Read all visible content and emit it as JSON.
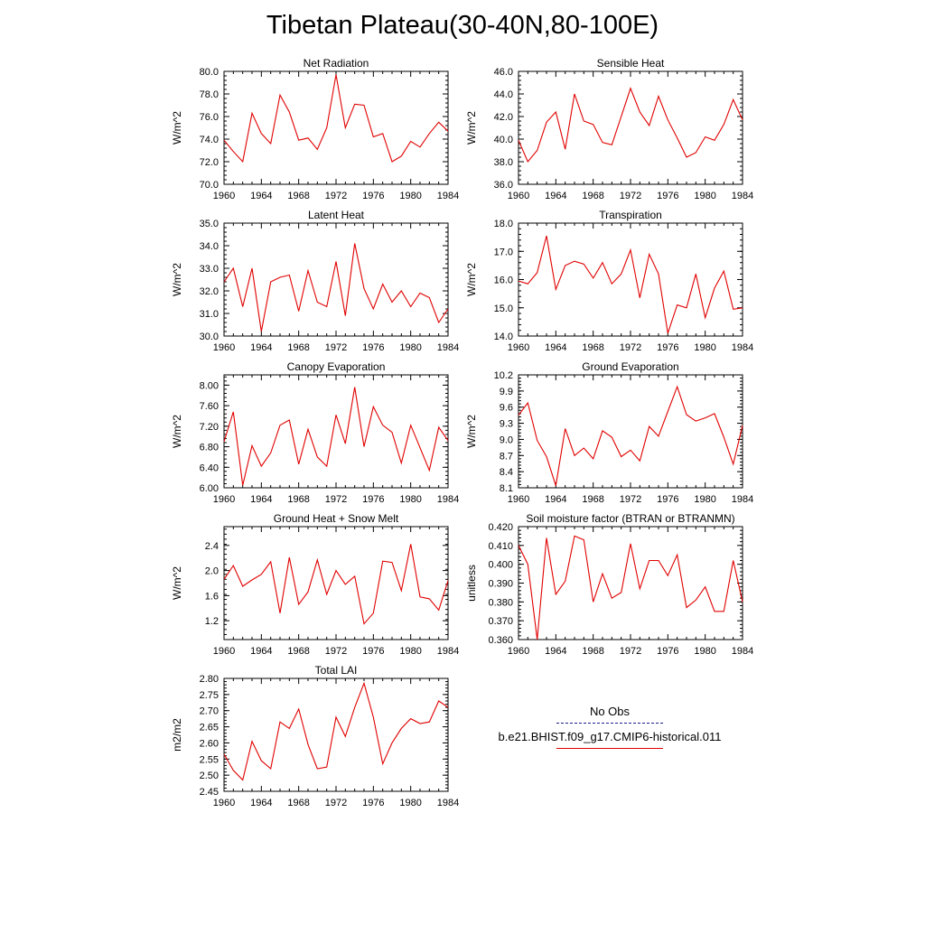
{
  "title": "Tibetan Plateau(30-40N,80-100E)",
  "legend": {
    "obs_label": "No Obs",
    "model_label": "b.e21.BHIST.f09_g17.CMIP6-historical.011",
    "obs_color": "#1a1a8c",
    "model_color": "#e00000"
  },
  "line_color": "#e00000",
  "chart_data": [
    {
      "type": "line",
      "title": "Net Radiation",
      "ylabel": "W/m^2",
      "xlim": [
        1960,
        1984
      ],
      "ylim": [
        70,
        80
      ],
      "yticks": [
        70,
        72,
        74,
        76,
        78,
        80
      ],
      "ytick_decimals": 1,
      "xticks": [
        1960,
        1964,
        1968,
        1972,
        1976,
        1980,
        1984
      ],
      "x": [
        1960,
        1961,
        1962,
        1963,
        1964,
        1965,
        1966,
        1967,
        1968,
        1969,
        1970,
        1971,
        1972,
        1973,
        1974,
        1975,
        1976,
        1977,
        1978,
        1979,
        1980,
        1981,
        1982,
        1983,
        1984
      ],
      "series": [
        {
          "values": [
            73.9,
            72.9,
            72.0,
            76.3,
            74.5,
            73.6,
            77.9,
            76.4,
            73.9,
            74.1,
            73.1,
            75.0,
            79.7,
            75.0,
            77.1,
            77.0,
            74.2,
            74.5,
            72.0,
            72.5,
            73.8,
            73.3,
            74.5,
            75.5,
            74.7
          ]
        }
      ]
    },
    {
      "type": "line",
      "title": "Sensible Heat",
      "ylabel": "W/m^2",
      "xlim": [
        1960,
        1984
      ],
      "ylim": [
        36,
        46
      ],
      "yticks": [
        36,
        38,
        40,
        42,
        44,
        46
      ],
      "ytick_decimals": 1,
      "xticks": [
        1960,
        1964,
        1968,
        1972,
        1976,
        1980,
        1984
      ],
      "x": [
        1960,
        1961,
        1962,
        1963,
        1964,
        1965,
        1966,
        1967,
        1968,
        1969,
        1970,
        1971,
        1972,
        1973,
        1974,
        1975,
        1976,
        1977,
        1978,
        1979,
        1980,
        1981,
        1982,
        1983,
        1984
      ],
      "series": [
        {
          "values": [
            39.9,
            38.0,
            39.0,
            41.5,
            42.4,
            39.1,
            44.0,
            41.6,
            41.3,
            39.7,
            39.5,
            42.0,
            44.5,
            42.4,
            41.2,
            43.8,
            41.7,
            40.1,
            38.4,
            38.8,
            40.2,
            39.9,
            41.3,
            43.5,
            41.7
          ]
        }
      ]
    },
    {
      "type": "line",
      "title": "Latent Heat",
      "ylabel": "W/m^2",
      "xlim": [
        1960,
        1984
      ],
      "ylim": [
        30,
        35
      ],
      "yticks": [
        30,
        31,
        32,
        33,
        34,
        35
      ],
      "ytick_decimals": 1,
      "xticks": [
        1960,
        1964,
        1968,
        1972,
        1976,
        1980,
        1984
      ],
      "x": [
        1960,
        1961,
        1962,
        1963,
        1964,
        1965,
        1966,
        1967,
        1968,
        1969,
        1970,
        1971,
        1972,
        1973,
        1974,
        1975,
        1976,
        1977,
        1978,
        1979,
        1980,
        1981,
        1982,
        1983,
        1984
      ],
      "series": [
        {
          "values": [
            32.4,
            33.0,
            31.3,
            33.0,
            30.2,
            32.4,
            32.6,
            32.7,
            31.1,
            32.9,
            31.5,
            31.3,
            33.3,
            30.9,
            34.1,
            32.1,
            31.2,
            32.3,
            31.5,
            32.0,
            31.3,
            31.9,
            31.7,
            30.6,
            31.2
          ]
        }
      ]
    },
    {
      "type": "line",
      "title": "Transpiration",
      "ylabel": "W/m^2",
      "xlim": [
        1960,
        1984
      ],
      "ylim": [
        14,
        18
      ],
      "yticks": [
        14,
        15,
        16,
        17,
        18
      ],
      "ytick_decimals": 1,
      "xticks": [
        1960,
        1964,
        1968,
        1972,
        1976,
        1980,
        1984
      ],
      "x": [
        1960,
        1961,
        1962,
        1963,
        1964,
        1965,
        1966,
        1967,
        1968,
        1969,
        1970,
        1971,
        1972,
        1973,
        1974,
        1975,
        1976,
        1977,
        1978,
        1979,
        1980,
        1981,
        1982,
        1983,
        1984
      ],
      "series": [
        {
          "values": [
            15.95,
            15.85,
            16.25,
            17.55,
            15.65,
            16.5,
            16.65,
            16.55,
            16.05,
            16.6,
            15.85,
            16.2,
            17.05,
            15.35,
            16.9,
            16.2,
            14.1,
            15.1,
            15.0,
            16.2,
            14.65,
            15.7,
            16.3,
            14.95,
            15.0
          ]
        }
      ]
    },
    {
      "type": "line",
      "title": "Canopy Evaporation",
      "ylabel": "W/m^2",
      "xlim": [
        1960,
        1984
      ],
      "ylim": [
        6.0,
        8.2
      ],
      "yticks": [
        6.0,
        6.4,
        6.8,
        7.2,
        7.6,
        8.0
      ],
      "ytick_decimals": 2,
      "xticks": [
        1960,
        1964,
        1968,
        1972,
        1976,
        1980,
        1984
      ],
      "x": [
        1960,
        1961,
        1962,
        1963,
        1964,
        1965,
        1966,
        1967,
        1968,
        1969,
        1970,
        1971,
        1972,
        1973,
        1974,
        1975,
        1976,
        1977,
        1978,
        1979,
        1980,
        1981,
        1982,
        1983,
        1984
      ],
      "series": [
        {
          "values": [
            6.9,
            7.48,
            6.05,
            6.82,
            6.42,
            6.68,
            7.22,
            7.32,
            6.46,
            7.14,
            6.6,
            6.42,
            7.42,
            6.86,
            7.96,
            6.8,
            7.58,
            7.22,
            7.08,
            6.48,
            7.22,
            6.78,
            6.34,
            7.18,
            6.92
          ]
        }
      ]
    },
    {
      "type": "line",
      "title": "Ground Evaporation",
      "ylabel": "W/m^2",
      "xlim": [
        1960,
        1984
      ],
      "ylim": [
        8.1,
        10.2
      ],
      "yticks": [
        8.1,
        8.4,
        8.7,
        9.0,
        9.3,
        9.6,
        9.9,
        10.2
      ],
      "ytick_decimals": 1,
      "xticks": [
        1960,
        1964,
        1968,
        1972,
        1976,
        1980,
        1984
      ],
      "x": [
        1960,
        1961,
        1962,
        1963,
        1964,
        1965,
        1966,
        1967,
        1968,
        1969,
        1970,
        1971,
        1972,
        1973,
        1974,
        1975,
        1976,
        1977,
        1978,
        1979,
        1980,
        1981,
        1982,
        1983,
        1984
      ],
      "series": [
        {
          "values": [
            9.45,
            9.68,
            8.98,
            8.68,
            8.14,
            9.2,
            8.7,
            8.84,
            8.64,
            9.16,
            9.04,
            8.68,
            8.8,
            8.6,
            9.24,
            9.06,
            9.52,
            9.98,
            9.46,
            9.34,
            9.4,
            9.48,
            9.04,
            8.54,
            9.26
          ]
        }
      ]
    },
    {
      "type": "line",
      "title": "Ground Heat + Snow Melt",
      "ylabel": "W/m^2",
      "xlim": [
        1960,
        1984
      ],
      "ylim": [
        0.9,
        2.7
      ],
      "yticks": [
        1.2,
        1.6,
        2.0,
        2.4
      ],
      "ytick_decimals": 1,
      "xticks": [
        1960,
        1964,
        1968,
        1972,
        1976,
        1980,
        1984
      ],
      "x": [
        1960,
        1961,
        1962,
        1963,
        1964,
        1965,
        1966,
        1967,
        1968,
        1969,
        1970,
        1971,
        1972,
        1973,
        1974,
        1975,
        1976,
        1977,
        1978,
        1979,
        1980,
        1981,
        1982,
        1983,
        1984
      ],
      "series": [
        {
          "values": [
            1.86,
            2.08,
            1.75,
            1.85,
            1.94,
            2.14,
            1.32,
            2.21,
            1.46,
            1.66,
            2.17,
            1.62,
            2.0,
            1.78,
            1.91,
            1.15,
            1.32,
            2.15,
            2.13,
            1.68,
            2.42,
            1.58,
            1.55,
            1.37,
            1.84
          ]
        }
      ]
    },
    {
      "type": "line",
      "title": "Soil moisture factor (BTRAN or BTRANMN)",
      "ylabel": "unitless",
      "xlim": [
        1960,
        1984
      ],
      "ylim": [
        0.36,
        0.42
      ],
      "yticks": [
        0.36,
        0.37,
        0.38,
        0.39,
        0.4,
        0.41,
        0.42
      ],
      "ytick_decimals": 3,
      "xticks": [
        1960,
        1964,
        1968,
        1972,
        1976,
        1980,
        1984
      ],
      "x": [
        1960,
        1961,
        1962,
        1963,
        1964,
        1965,
        1966,
        1967,
        1968,
        1969,
        1970,
        1971,
        1972,
        1973,
        1974,
        1975,
        1976,
        1977,
        1978,
        1979,
        1980,
        1981,
        1982,
        1983,
        1984
      ],
      "series": [
        {
          "values": [
            0.41,
            0.4,
            0.36,
            0.414,
            0.384,
            0.391,
            0.415,
            0.413,
            0.38,
            0.395,
            0.382,
            0.385,
            0.411,
            0.387,
            0.402,
            0.402,
            0.394,
            0.405,
            0.377,
            0.381,
            0.388,
            0.375,
            0.375,
            0.402,
            0.38
          ]
        }
      ]
    },
    {
      "type": "line",
      "title": "Total LAI",
      "ylabel": "m2/m2",
      "xlim": [
        1960,
        1984
      ],
      "ylim": [
        2.45,
        2.8
      ],
      "yticks": [
        2.45,
        2.5,
        2.55,
        2.6,
        2.65,
        2.7,
        2.75,
        2.8
      ],
      "ytick_decimals": 2,
      "xticks": [
        1960,
        1964,
        1968,
        1972,
        1976,
        1980,
        1984
      ],
      "x": [
        1960,
        1961,
        1962,
        1963,
        1964,
        1965,
        1966,
        1967,
        1968,
        1969,
        1970,
        1971,
        1972,
        1973,
        1974,
        1975,
        1976,
        1977,
        1978,
        1979,
        1980,
        1981,
        1982,
        1983,
        1984
      ],
      "series": [
        {
          "values": [
            2.565,
            2.515,
            2.485,
            2.605,
            2.545,
            2.52,
            2.665,
            2.645,
            2.705,
            2.595,
            2.52,
            2.525,
            2.68,
            2.62,
            2.71,
            2.785,
            2.68,
            2.535,
            2.6,
            2.645,
            2.675,
            2.66,
            2.665,
            2.73,
            2.71
          ]
        }
      ]
    }
  ]
}
